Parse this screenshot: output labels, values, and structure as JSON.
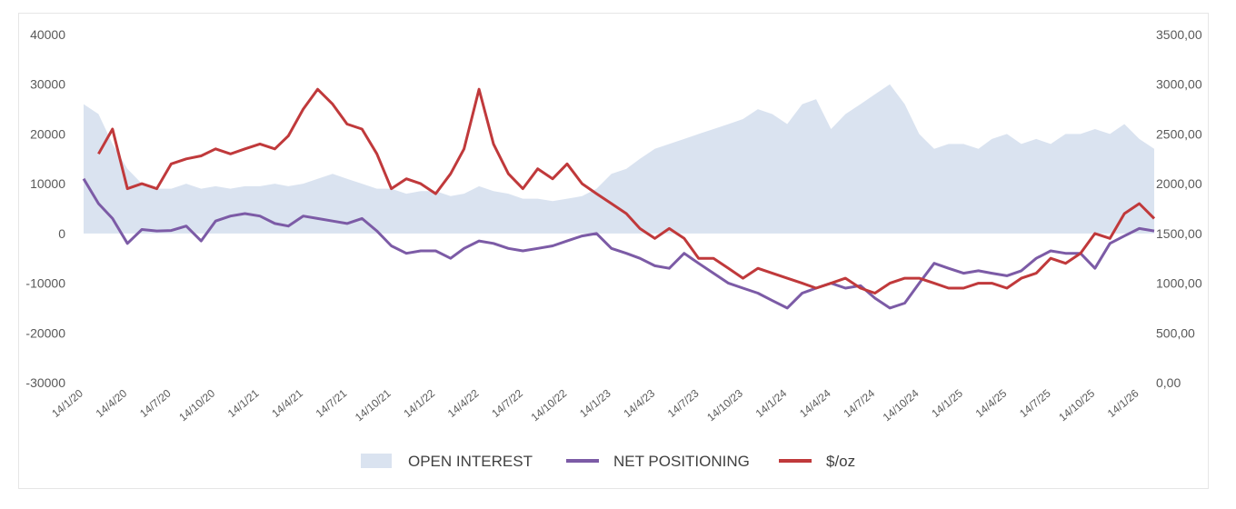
{
  "chart_data": {
    "type": "line",
    "title": "",
    "left_axis": {
      "ticks": [
        "40000",
        "30000",
        "20000",
        "10000",
        "0",
        "-10000",
        "-20000",
        "-30000"
      ],
      "range": [
        -30000,
        40000
      ]
    },
    "right_axis": {
      "ticks": [
        "3500,00",
        "3000,00",
        "2500,00",
        "2000,00",
        "1500,00",
        "1000,00",
        "500,00",
        "0,00"
      ],
      "range": [
        0,
        3500
      ]
    },
    "x_ticks": [
      "14/1/20",
      "14/4/20",
      "14/7/20",
      "14/10/20",
      "14/1/21",
      "14/4/21",
      "14/7/21",
      "14/10/21",
      "14/1/22",
      "14/4/22",
      "14/7/22",
      "14/10/22",
      "14/1/23",
      "14/4/23",
      "14/7/23",
      "14/10/23",
      "14/1/24",
      "14/4/24",
      "14/7/24",
      "14/10/24",
      "14/1/25",
      "14/4/25",
      "14/7/25",
      "14/10/25",
      "14/1/26"
    ],
    "grid": false,
    "legend_position": "bottom",
    "series": [
      {
        "name": "OPEN INTEREST",
        "kind": "area",
        "axis": "left",
        "color": "#dae3f0",
        "x": [
          "14/1/20",
          "14/2/20",
          "14/3/20",
          "14/4/20",
          "14/5/20",
          "14/6/20",
          "14/7/20",
          "14/8/20",
          "14/9/20",
          "14/10/20",
          "14/11/20",
          "14/12/20",
          "14/1/21",
          "14/2/21",
          "14/3/21",
          "14/4/21",
          "14/5/21",
          "14/6/21",
          "14/7/21",
          "14/8/21",
          "14/9/21",
          "14/10/21",
          "14/11/21",
          "14/12/21",
          "14/1/22",
          "14/2/22",
          "14/3/22",
          "14/4/22",
          "14/5/22",
          "14/6/22",
          "14/7/22",
          "14/8/22",
          "14/9/22",
          "14/10/22",
          "14/11/22",
          "14/12/22",
          "14/1/23",
          "14/2/23",
          "14/3/23",
          "14/4/23",
          "14/5/23",
          "14/6/23",
          "14/7/23",
          "14/8/23",
          "14/9/23",
          "14/10/23",
          "14/11/23",
          "14/12/23",
          "14/1/24",
          "14/2/24",
          "14/3/24",
          "14/4/24",
          "14/5/24",
          "14/6/24",
          "14/7/24",
          "14/8/24",
          "14/9/24",
          "14/10/24",
          "14/11/24",
          "14/12/24",
          "14/1/25",
          "14/2/25",
          "14/3/25",
          "14/4/25",
          "14/5/25",
          "14/6/25",
          "14/7/25",
          "14/8/25",
          "14/9/25",
          "14/10/25",
          "14/11/25",
          "14/12/25",
          "14/1/26",
          "14/2/26"
        ],
        "values": [
          26000,
          24000,
          18000,
          13000,
          10000,
          9000,
          9000,
          10000,
          9000,
          9500,
          9000,
          9500,
          9500,
          10000,
          9500,
          10000,
          11000,
          12000,
          11000,
          10000,
          9000,
          9000,
          8000,
          8500,
          8500,
          7500,
          8000,
          9500,
          8500,
          8000,
          7000,
          7000,
          6500,
          7000,
          7500,
          9000,
          12000,
          13000,
          15000,
          17000,
          18000,
          19000,
          20000,
          21000,
          22000,
          23000,
          25000,
          24000,
          22000,
          26000,
          27000,
          21000,
          24000,
          26000,
          28000,
          30000,
          26000,
          20000,
          17000,
          18000,
          18000,
          17000,
          19000,
          20000,
          18000,
          19000,
          18000,
          20000,
          20000,
          21000,
          20000,
          22000,
          19000,
          17000
        ]
      },
      {
        "name": "NET POSITIONING",
        "kind": "line",
        "axis": "left",
        "color": "#7c5ba6",
        "x": [
          "14/1/20",
          "14/2/20",
          "14/3/20",
          "14/4/20",
          "14/5/20",
          "14/6/20",
          "14/7/20",
          "14/8/20",
          "14/9/20",
          "14/10/20",
          "14/11/20",
          "14/12/20",
          "14/1/21",
          "14/2/21",
          "14/3/21",
          "14/4/21",
          "14/5/21",
          "14/6/21",
          "14/7/21",
          "14/8/21",
          "14/9/21",
          "14/10/21",
          "14/11/21",
          "14/12/21",
          "14/1/22",
          "14/2/22",
          "14/3/22",
          "14/4/22",
          "14/5/22",
          "14/6/22",
          "14/7/22",
          "14/8/22",
          "14/9/22",
          "14/10/22",
          "14/11/22",
          "14/12/22",
          "14/1/23",
          "14/2/23",
          "14/3/23",
          "14/4/23",
          "14/5/23",
          "14/6/23",
          "14/7/23",
          "14/8/23",
          "14/9/23",
          "14/10/23",
          "14/11/23",
          "14/12/23",
          "14/1/24",
          "14/2/24",
          "14/3/24",
          "14/4/24",
          "14/5/24",
          "14/6/24",
          "14/7/24",
          "14/8/24",
          "14/9/24",
          "14/10/24",
          "14/11/24",
          "14/12/24",
          "14/1/25",
          "14/2/25",
          "14/3/25",
          "14/4/25",
          "14/5/25",
          "14/6/25",
          "14/7/25",
          "14/8/25",
          "14/9/25",
          "14/10/25",
          "14/11/25",
          "14/12/25",
          "14/1/26",
          "14/2/26"
        ],
        "values": [
          11000,
          6000,
          3000,
          -2000,
          800,
          500,
          600,
          1500,
          -1500,
          2500,
          3500,
          4000,
          3500,
          2000,
          1500,
          3500,
          3000,
          2500,
          2000,
          3000,
          500,
          -2500,
          -4000,
          -3500,
          -3500,
          -5000,
          -3000,
          -1500,
          -2000,
          -3000,
          -3500,
          -3000,
          -2500,
          -1500,
          -500,
          0,
          -3000,
          -4000,
          -5000,
          -6500,
          -7000,
          -4000,
          -6000,
          -8000,
          -10000,
          -11000,
          -12000,
          -13500,
          -15000,
          -12000,
          -11000,
          -10000,
          -11000,
          -10500,
          -13000,
          -15000,
          -14000,
          -10000,
          -6000,
          -7000,
          -8000,
          -7500,
          -8000,
          -8500,
          -7500,
          -5000,
          -3500,
          -4000,
          -4000,
          -7000,
          -2000,
          -500,
          1000,
          500
        ]
      },
      {
        "name": "$/oz",
        "kind": "line",
        "axis": "right",
        "color": "#c0393b",
        "x": [
          "14/2/20",
          "14/3/20",
          "14/4/20",
          "14/5/20",
          "14/6/20",
          "14/7/20",
          "14/8/20",
          "14/9/20",
          "14/10/20",
          "14/11/20",
          "14/12/20",
          "14/1/21",
          "14/2/21",
          "14/3/21",
          "14/4/21",
          "14/5/21",
          "14/6/21",
          "14/7/21",
          "14/8/21",
          "14/9/21",
          "14/10/21",
          "14/11/21",
          "14/12/21",
          "14/1/22",
          "14/2/22",
          "14/3/22",
          "14/4/22",
          "14/5/22",
          "14/6/22",
          "14/7/22",
          "14/8/22",
          "14/9/22",
          "14/10/22",
          "14/11/22",
          "14/12/22",
          "14/1/23",
          "14/2/23",
          "14/3/23",
          "14/4/23",
          "14/5/23",
          "14/6/23",
          "14/7/23",
          "14/8/23",
          "14/9/23",
          "14/10/23",
          "14/11/23",
          "14/12/23",
          "14/1/24",
          "14/2/24",
          "14/3/24",
          "14/4/24",
          "14/5/24",
          "14/6/24",
          "14/7/24",
          "14/8/24",
          "14/9/24",
          "14/10/24",
          "14/11/24",
          "14/12/24",
          "14/1/25",
          "14/2/25",
          "14/3/25",
          "14/4/25",
          "14/5/25",
          "14/6/25",
          "14/7/25",
          "14/8/25",
          "14/9/25",
          "14/10/25",
          "14/11/25",
          "14/12/25",
          "14/1/26",
          "14/2/26"
        ],
        "values": [
          2300,
          2550,
          1950,
          2000,
          1950,
          2200,
          2250,
          2280,
          2350,
          2300,
          2350,
          2400,
          2350,
          2480,
          2750,
          2950,
          2800,
          2600,
          2550,
          2300,
          1950,
          2050,
          2000,
          1900,
          2100,
          2350,
          2950,
          2400,
          2100,
          1950,
          2150,
          2050,
          2200,
          2000,
          1900,
          1800,
          1700,
          1550,
          1450,
          1550,
          1450,
          1250,
          1250,
          1150,
          1050,
          1150,
          1100,
          1050,
          1000,
          950,
          1000,
          1050,
          950,
          900,
          1000,
          1050,
          1050,
          1000,
          950,
          950,
          1000,
          1000,
          950,
          1050,
          1100,
          1250,
          1200,
          1300,
          1500,
          1450,
          1700,
          1800,
          1650
        ]
      }
    ]
  }
}
